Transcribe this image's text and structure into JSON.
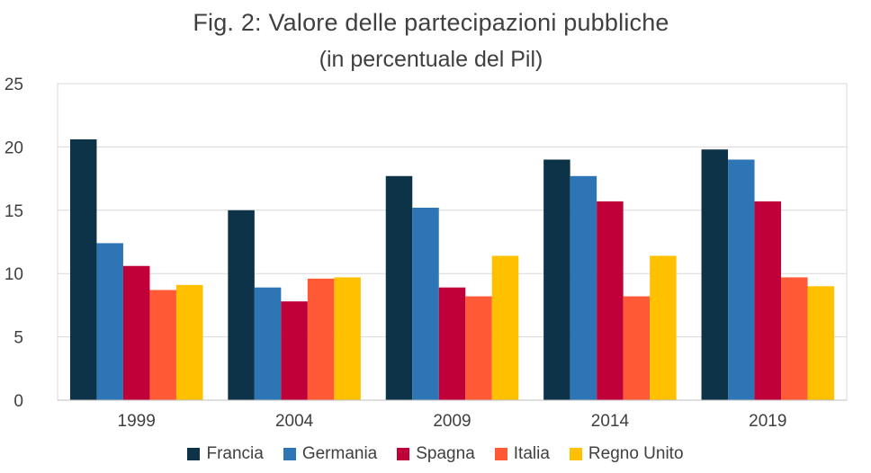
{
  "chart_data": {
    "type": "bar",
    "title": "Fig. 2: Valore delle partecipazioni pubbliche",
    "subtitle": "(in percentuale del Pil)",
    "xlabel": "",
    "ylabel": "",
    "categories": [
      "1999",
      "2004",
      "2009",
      "2014",
      "2019"
    ],
    "ylim": [
      0,
      25
    ],
    "yticks": [
      "0",
      "5",
      "10",
      "15",
      "20",
      "25"
    ],
    "grid": true,
    "legend_position": "bottom",
    "series": [
      {
        "name": "Francia",
        "color": "#0d3349",
        "values": [
          20.6,
          15.0,
          17.7,
          19.0,
          19.8
        ]
      },
      {
        "name": "Germania",
        "color": "#2e75b6",
        "values": [
          12.4,
          8.9,
          15.2,
          17.7,
          19.0
        ]
      },
      {
        "name": "Spagna",
        "color": "#c00038",
        "values": [
          10.6,
          7.8,
          8.9,
          15.7,
          15.7
        ]
      },
      {
        "name": "Italia",
        "color": "#ff5a35",
        "values": [
          8.7,
          9.6,
          8.2,
          8.2,
          9.7
        ]
      },
      {
        "name": "Regno Unito",
        "color": "#ffc000",
        "values": [
          9.1,
          9.7,
          11.4,
          11.4,
          9.0
        ]
      }
    ]
  }
}
